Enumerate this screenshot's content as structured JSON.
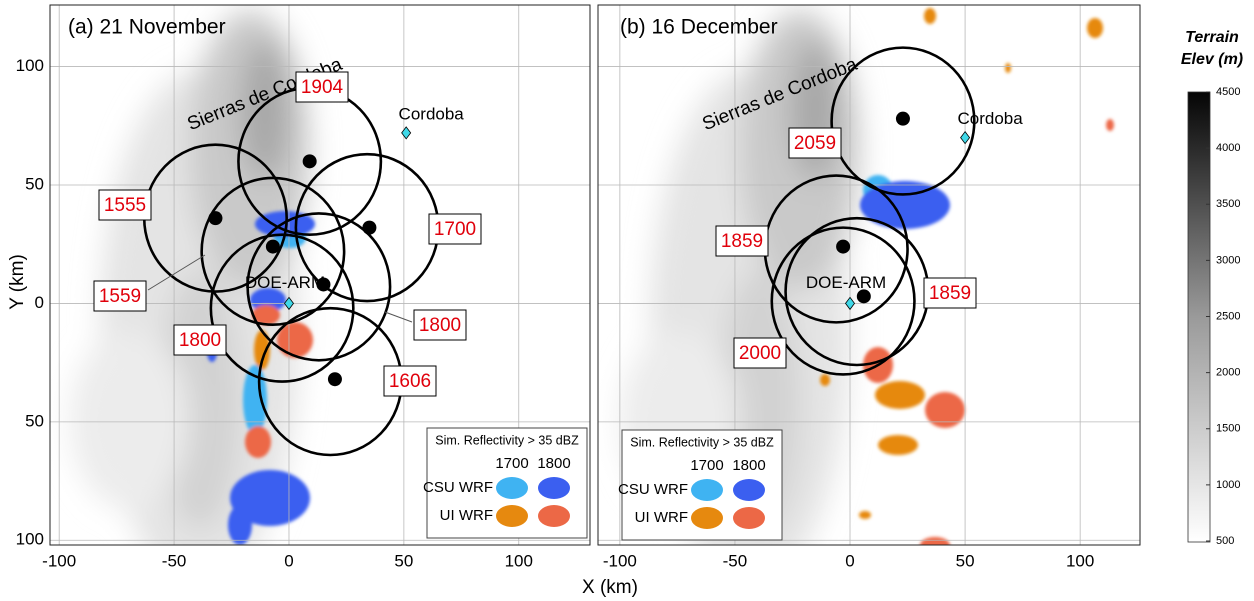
{
  "x_label": "X (km)",
  "y_label": "Y (km)",
  "ylim": [
    -102,
    126
  ],
  "yticks": [
    {
      "value": -100,
      "label": "100"
    },
    {
      "value": -50,
      "label": "50"
    },
    0,
    50,
    100
  ],
  "panels": [
    {
      "title": "(a) 21 November",
      "xlim": [
        -104,
        131
      ],
      "xticks": [
        -100,
        -50,
        0,
        50,
        100
      ],
      "terrain_label": "Sierras de Cordoba",
      "sites": [
        {
          "name": "Cordoba",
          "x": 51,
          "y": 72
        },
        {
          "name": "DOE-ARM",
          "x": 0,
          "y": 0
        }
      ],
      "circles": [
        {
          "label": "1904",
          "x": 9,
          "y": 60,
          "r": 31
        },
        {
          "label": "1555",
          "x": -32,
          "y": 36,
          "r": 31
        },
        {
          "label": "1700",
          "x": 34,
          "y": 32,
          "r": 31
        },
        {
          "label": "1559",
          "x": -7,
          "y": 22,
          "r": 31
        },
        {
          "label": "1800",
          "x": 13,
          "y": 7,
          "r": 31
        },
        {
          "label": "1800",
          "x": -3,
          "y": -2,
          "r": 31
        },
        {
          "label": "1606",
          "x": 18,
          "y": -33,
          "r": 31
        }
      ],
      "dots": [
        {
          "x": 9,
          "y": 60
        },
        {
          "x": -32,
          "y": 36
        },
        {
          "x": 35,
          "y": 32
        },
        {
          "x": -7,
          "y": 24
        },
        {
          "x": 15,
          "y": 8
        },
        {
          "x": 20,
          "y": -32
        }
      ]
    },
    {
      "title": "(b) 16 December",
      "xlim": [
        -109.5,
        126
      ],
      "xticks": [
        -100,
        -50,
        0,
        50,
        100
      ],
      "terrain_label": "Sierras de Cordoba",
      "sites": [
        {
          "name": "Cordoba",
          "x": 50,
          "y": 70
        },
        {
          "name": "DOE-ARM",
          "x": 0,
          "y": 0
        }
      ],
      "circles": [
        {
          "label": "2059",
          "x": 23,
          "y": 77,
          "r": 31
        },
        {
          "label": "1859",
          "x": -6,
          "y": 23,
          "r": 31
        },
        {
          "label": "1859",
          "x": 3,
          "y": 5,
          "r": 31
        },
        {
          "label": "2000",
          "x": -3,
          "y": 1,
          "r": 31
        }
      ],
      "dots": [
        {
          "x": 23,
          "y": 78
        },
        {
          "x": -3,
          "y": 24
        },
        {
          "x": 6,
          "y": 3
        }
      ]
    }
  ],
  "legend": {
    "title": "Sim. Reflectivity > 35 dBZ",
    "times": [
      "1700",
      "1800"
    ],
    "models": [
      {
        "name": "CSU WRF",
        "colors": [
          "#3fb3f2",
          "#3b5ff0"
        ]
      },
      {
        "name": "UI WRF",
        "colors": [
          "#e6890f",
          "#ec6846"
        ]
      }
    ]
  },
  "colorbar": {
    "title_lines": [
      "Terrain",
      "Elev (m)"
    ],
    "lim": [
      500,
      4500
    ],
    "ticks": [
      500,
      1000,
      1500,
      2000,
      2500,
      3000,
      3500,
      4000,
      4500
    ]
  }
}
